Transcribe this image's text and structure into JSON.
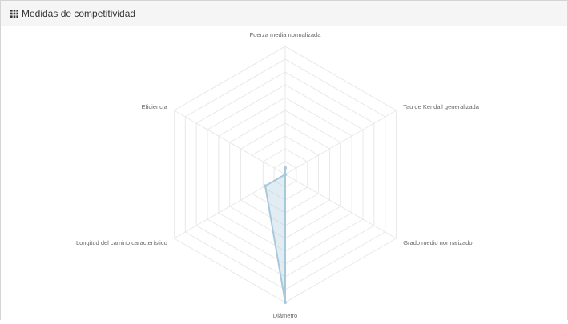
{
  "panel": {
    "title": "Medidas de competitividad",
    "icon": "th-grid-icon"
  },
  "chart_data": {
    "type": "radar",
    "axes": [
      "Fuerza media normalizada",
      "Tau de Kendall generalizada",
      "Grado medio normalizado",
      "Diámetro",
      "Longitud del camino característico",
      "Eficiencia"
    ],
    "series": [
      {
        "values": [
          0.05,
          0.0,
          0.0,
          1.0,
          0.18,
          0.0
        ]
      }
    ],
    "rlim": [
      0,
      1
    ],
    "grid_levels": 10,
    "colors": {
      "grid": "#e8e8e8",
      "series_stroke": "#a8c8dc",
      "series_fill": "rgba(168,200,220,0.35)"
    }
  }
}
